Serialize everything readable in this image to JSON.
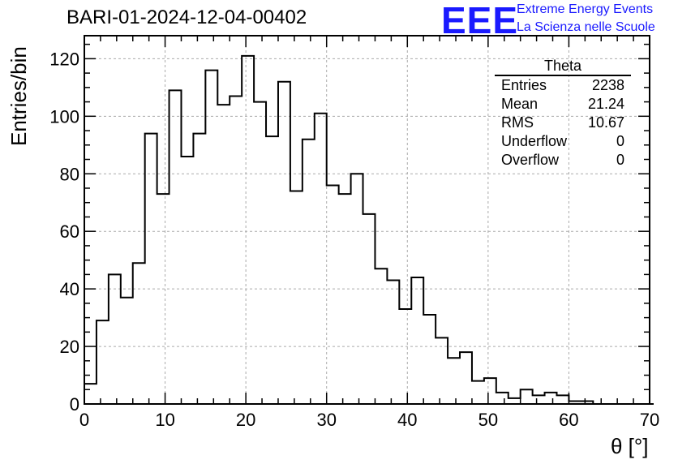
{
  "header": {
    "run_title": "BARI-01-2024-12-04-00402",
    "logo_text": "EEE",
    "logo_line1": "Extreme Energy Events",
    "logo_line2": "La Scienza nelle Scuole",
    "logo_color": "#1a1aff"
  },
  "stats_box": {
    "title": "Theta",
    "rows": [
      {
        "label": "Entries",
        "value": "2238"
      },
      {
        "label": "Mean",
        "value": "21.24"
      },
      {
        "label": "RMS",
        "value": "10.67"
      },
      {
        "label": "Underflow",
        "value": "0"
      },
      {
        "label": "Overflow",
        "value": "0"
      }
    ]
  },
  "chart_data": {
    "type": "histogram",
    "title": "BARI-01-2024-12-04-00402",
    "xlabel": "θ [°]",
    "ylabel": "Entries/bin",
    "xlim": [
      0,
      70
    ],
    "ylim": [
      0,
      128
    ],
    "bin_width": 1.5,
    "bin_start": 0,
    "values": [
      7,
      29,
      45,
      37,
      49,
      94,
      73,
      109,
      86,
      94,
      116,
      104,
      107,
      121,
      105,
      93,
      112,
      74,
      92,
      101,
      76,
      73,
      80,
      66,
      47,
      43,
      33,
      44,
      31,
      23,
      16,
      18,
      8,
      9,
      4,
      2,
      5,
      3,
      4,
      3,
      1,
      1,
      0,
      0,
      0,
      0,
      0
    ],
    "x_ticks": [
      0,
      10,
      20,
      30,
      40,
      50,
      60,
      70
    ],
    "y_ticks": [
      0,
      20,
      40,
      60,
      80,
      100,
      120
    ],
    "grid": true,
    "line_color": "#000000"
  }
}
